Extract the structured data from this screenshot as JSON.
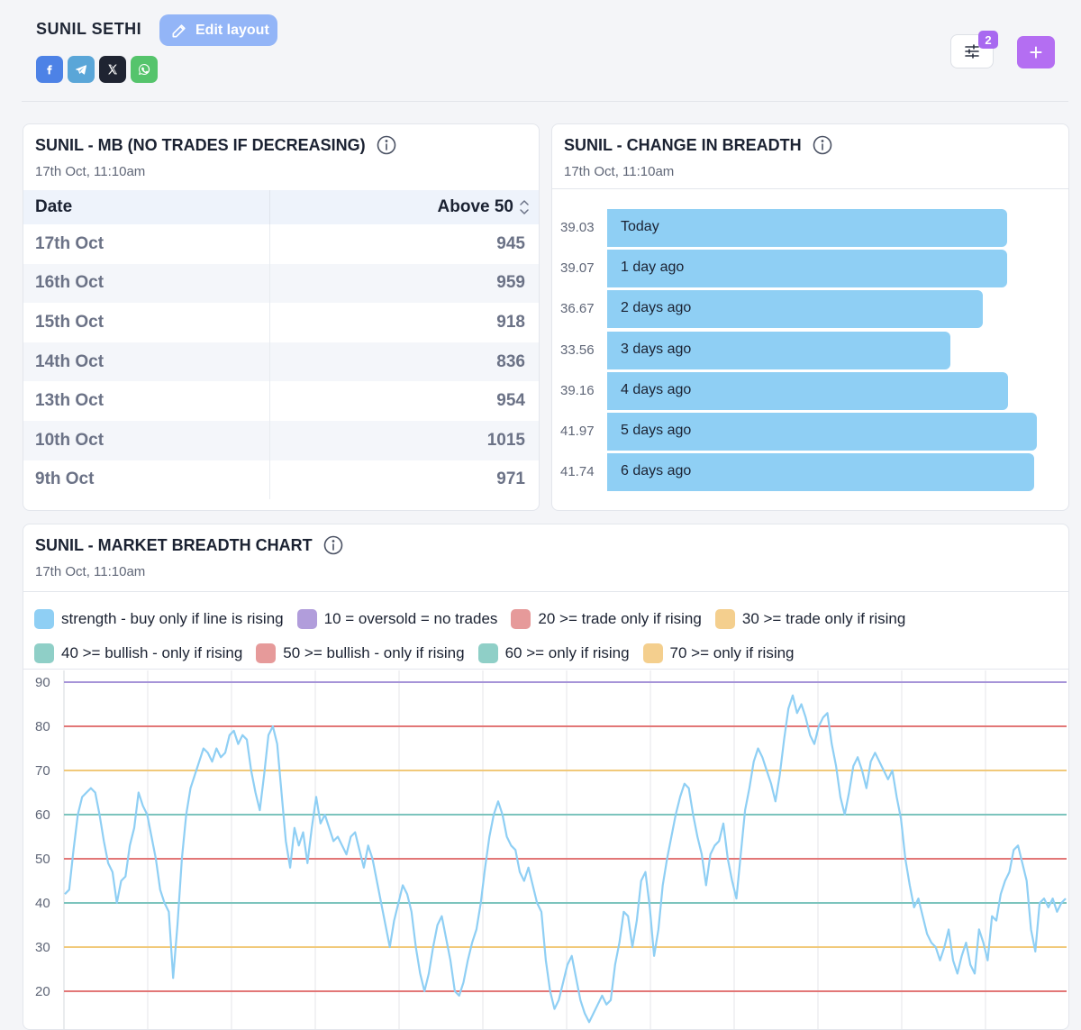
{
  "header": {
    "user_name": "SUNIL SETHI",
    "edit_label": "Edit layout",
    "filter_count": "2",
    "add_symbol": "+"
  },
  "socials": [
    "facebook-icon",
    "telegram-icon",
    "x-icon",
    "whatsapp-icon"
  ],
  "mb_table": {
    "title": "SUNIL - MB (NO TRADES IF DECREASING)",
    "time": "17th Oct, 11:10am",
    "columns": [
      "Date",
      "Above 50"
    ],
    "rows": [
      {
        "date": "17th Oct",
        "value": "945"
      },
      {
        "date": "16th Oct",
        "value": "959"
      },
      {
        "date": "15th Oct",
        "value": "918"
      },
      {
        "date": "14th Oct",
        "value": "836"
      },
      {
        "date": "13th Oct",
        "value": "954"
      },
      {
        "date": "10th Oct",
        "value": "1015"
      },
      {
        "date": "9th Oct",
        "value": "971"
      }
    ]
  },
  "change_breadth": {
    "title": "SUNIL - CHANGE IN BREADTH",
    "time": "17th Oct, 11:10am",
    "rows": [
      {
        "value": "39.03",
        "label": "Today"
      },
      {
        "value": "39.07",
        "label": "1 day ago"
      },
      {
        "value": "36.67",
        "label": "2 days ago"
      },
      {
        "value": "33.56",
        "label": "3 days ago"
      },
      {
        "value": "39.16",
        "label": "4 days ago"
      },
      {
        "value": "41.97",
        "label": "5 days ago"
      },
      {
        "value": "41.74",
        "label": "6 days ago"
      }
    ]
  },
  "breadth_chart": {
    "title": "SUNIL - MARKET BREADTH CHART",
    "time": "17th Oct, 11:10am"
  },
  "chart_data": {
    "type": "line",
    "ylim": [
      18,
      90
    ],
    "yticks": [
      20,
      30,
      40,
      50,
      60,
      70,
      80,
      90
    ],
    "grid": true,
    "legend_position": "top",
    "legend": [
      {
        "name": "strength - buy only if line is rising",
        "color": "#8fcff4"
      },
      {
        "name": "10 = oversold = no trades",
        "color": "#b19ddb"
      },
      {
        "name": "20 >= trade only if rising",
        "color": "#e69a9a"
      },
      {
        "name": "30 >= trade only if rising",
        "color": "#f4cf8e"
      },
      {
        "name": "40 >= bullish - only if rising",
        "color": "#8fcfc7"
      },
      {
        "name": "50 >= bullish - only if rising",
        "color": "#e69a9a"
      },
      {
        "name": "60 >= only if rising",
        "color": "#8fcfc7"
      },
      {
        "name": "70 >= only if rising",
        "color": "#f4cf8e"
      }
    ],
    "thresholds": [
      {
        "value": 90,
        "color": "#a694d8"
      },
      {
        "value": 80,
        "color": "#e27777"
      },
      {
        "value": 70,
        "color": "#f1c97a"
      },
      {
        "value": 60,
        "color": "#7cc4bd"
      },
      {
        "value": 50,
        "color": "#e27777"
      },
      {
        "value": 40,
        "color": "#7cc4bd"
      },
      {
        "value": 30,
        "color": "#f1c97a"
      },
      {
        "value": 20,
        "color": "#e27777"
      }
    ],
    "series": [
      {
        "color": "#8fcff4",
        "values": [
          42,
          43,
          52,
          60,
          64,
          65,
          66,
          65,
          60,
          54,
          49,
          47,
          40,
          45,
          46,
          53,
          57,
          65,
          62,
          60,
          55,
          50,
          43,
          40,
          38,
          23,
          35,
          50,
          60,
          66,
          69,
          72,
          75,
          74,
          72,
          75,
          73,
          74,
          78,
          79,
          76,
          78,
          77,
          70,
          65,
          61,
          69,
          78,
          80,
          76,
          65,
          54,
          48,
          57,
          53,
          56,
          49,
          57,
          64,
          58,
          60,
          57,
          54,
          55,
          53,
          51,
          55,
          56,
          52,
          48,
          53,
          50,
          45,
          40,
          35,
          30,
          36,
          40,
          44,
          42,
          38,
          30,
          24,
          20,
          24,
          30,
          35,
          37,
          32,
          27,
          20,
          19,
          22,
          27,
          31,
          34,
          40,
          48,
          55,
          60,
          63,
          60,
          55,
          53,
          52,
          47,
          45,
          48,
          44,
          40,
          38,
          27,
          20,
          16,
          18,
          22,
          26,
          28,
          23,
          18,
          15,
          13,
          15,
          17,
          19,
          17,
          18,
          26,
          31,
          38,
          37,
          30,
          36,
          45,
          47,
          39,
          28,
          34,
          44,
          50,
          55,
          60,
          64,
          67,
          66,
          60,
          55,
          51,
          44,
          51,
          53,
          54,
          58,
          50,
          45,
          41,
          51,
          61,
          66,
          72,
          75,
          73,
          70,
          67,
          63,
          69,
          77,
          84,
          87,
          83,
          85,
          82,
          78,
          76,
          80,
          82,
          83,
          76,
          71,
          64,
          60,
          65,
          71,
          73,
          70,
          66,
          72,
          74,
          72,
          70,
          68,
          70,
          64,
          59,
          50,
          44,
          39,
          41,
          37,
          33,
          31,
          30,
          27,
          30,
          34,
          27,
          24,
          28,
          31,
          26,
          24,
          34,
          31,
          27,
          37,
          36,
          42,
          45,
          47,
          52,
          53,
          49,
          45,
          34,
          29,
          40,
          41,
          39,
          41,
          38,
          40,
          41
        ]
      }
    ]
  }
}
